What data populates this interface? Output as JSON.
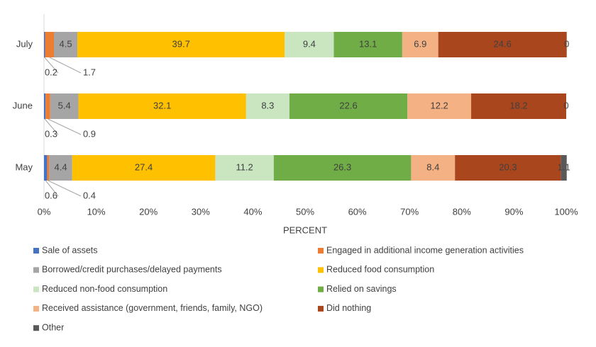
{
  "chart_data": {
    "type": "stacked-barh",
    "categories": [
      "July",
      "June",
      "May"
    ],
    "series": [
      {
        "name": "Sale of assets",
        "color": "#4472c4",
        "values": [
          0.2,
          0.3,
          0.6
        ]
      },
      {
        "name": "Engaged in additional income generation activities",
        "color": "#ed7d31",
        "values": [
          1.7,
          0.9,
          0.4
        ]
      },
      {
        "name": "Borrowed/credit purchases/delayed payments",
        "color": "#a5a5a5",
        "values": [
          4.5,
          5.4,
          4.4
        ]
      },
      {
        "name": "Reduced food consumption",
        "color": "#ffc000",
        "values": [
          39.7,
          32.1,
          27.4
        ]
      },
      {
        "name": "Reduced non-food consumption",
        "color": "#c9e6c0",
        "values": [
          9.4,
          8.3,
          11.2
        ]
      },
      {
        "name": "Relied on savings",
        "color": "#70ad47",
        "values": [
          13.1,
          22.6,
          26.3
        ]
      },
      {
        "name": "Received assistance (government, friends, family, NGO)",
        "color": "#f4b183",
        "values": [
          6.9,
          12.2,
          8.4
        ]
      },
      {
        "name": "Did nothing",
        "color": "#a9461d",
        "values": [
          24.6,
          18.2,
          20.3
        ]
      },
      {
        "name": "Other",
        "color": "#595959",
        "values": [
          0,
          0,
          1.1
        ]
      }
    ],
    "xlabel": "PERCENT",
    "xlim": [
      0,
      100
    ],
    "xticks": [
      {
        "value": 0,
        "label": "0%"
      },
      {
        "value": 10,
        "label": "10%"
      },
      {
        "value": 20,
        "label": "20%"
      },
      {
        "value": 30,
        "label": "30%"
      },
      {
        "value": 40,
        "label": "40%"
      },
      {
        "value": 50,
        "label": "50%"
      },
      {
        "value": 60,
        "label": "60%"
      },
      {
        "value": 70,
        "label": "70%"
      },
      {
        "value": 80,
        "label": "80%"
      },
      {
        "value": 90,
        "label": "90%"
      },
      {
        "value": 100,
        "label": "100%"
      }
    ],
    "legend": "bottom"
  }
}
